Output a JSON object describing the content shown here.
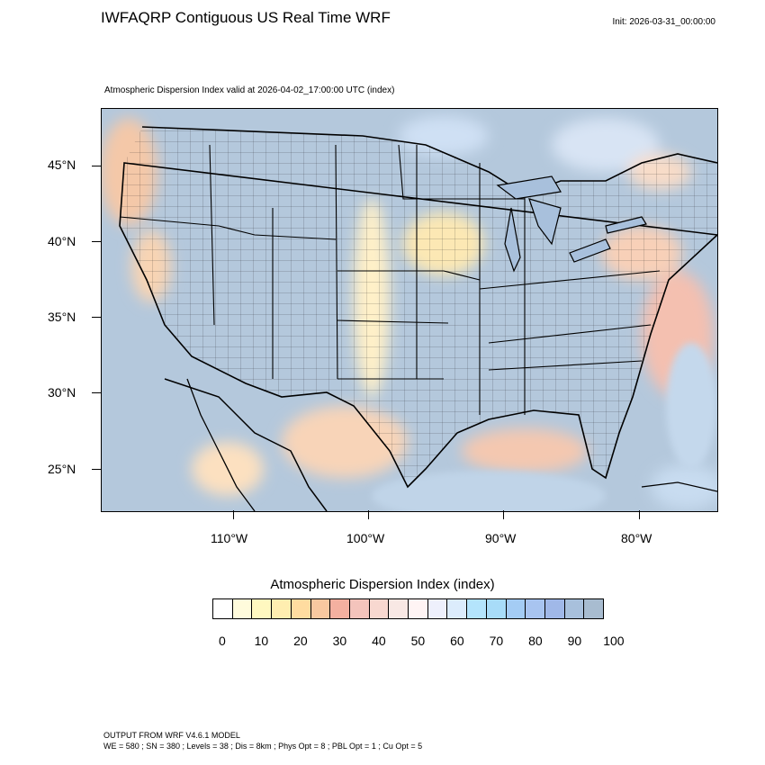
{
  "header": {
    "title": "IWFAQRP Contiguous US Real Time WRF",
    "init": "Init: 2026-03-31_00:00:00",
    "subtitle": "Atmospheric Dispersion Index valid at 2026-04-02_17:00:00 UTC   (index)"
  },
  "axes": {
    "lat_labels": [
      "45°N",
      "40°N",
      "35°N",
      "30°N",
      "25°N"
    ],
    "lon_labels": [
      "110°W",
      "100°W",
      "90°W",
      "80°W"
    ]
  },
  "colorbar": {
    "title": "Atmospheric Dispersion Index  (index)",
    "tick_labels": [
      "0",
      "10",
      "20",
      "30",
      "40",
      "50",
      "60",
      "70",
      "80",
      "90",
      "100"
    ],
    "colors": [
      "#ffffff",
      "#fffbdc",
      "#fff8c0",
      "#ffeeb0",
      "#ffdca0",
      "#f8c8a0",
      "#f4b0a0",
      "#f4c4bc",
      "#f8d8d0",
      "#f8e8e4",
      "#fff4f4",
      "#eef0fc",
      "#dcecfc",
      "#b4e4fc",
      "#a8dcf8",
      "#a4ccf4",
      "#a8c4f0",
      "#a0b8e8",
      "#a8c0dc",
      "#a8bcd0"
    ]
  },
  "map": {
    "land_color": "#b4c8dc",
    "low_color": "#f8c8a0",
    "mid_color": "#fff4c0"
  },
  "footer": {
    "line1": "OUTPUT FROM WRF V4.6.1 MODEL",
    "line2": "WE = 580 ; SN = 380 ; Levels = 38 ; Dis = 8km ; Phys Opt = 8 ; PBL Opt = 1 ; Cu Opt = 5"
  }
}
